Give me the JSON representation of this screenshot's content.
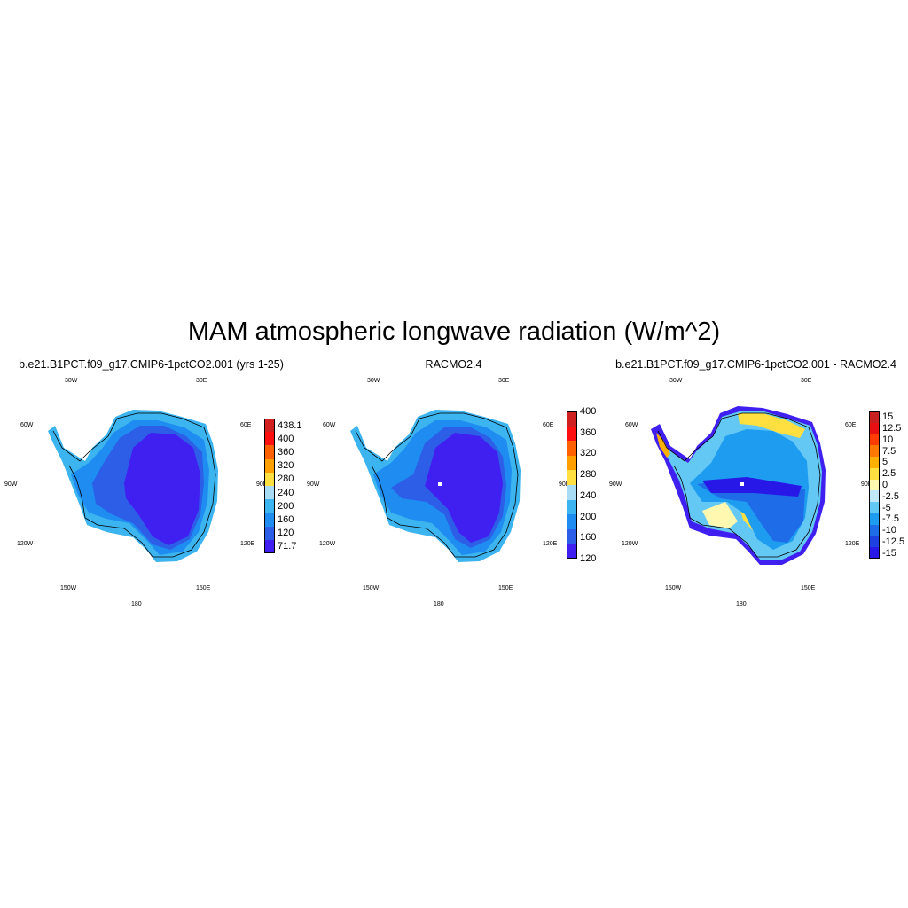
{
  "title": "MAM atmospheric longwave radiation (W/m^2)",
  "panels": [
    {
      "title": "b.e21.B1PCT.f09_g17.CMIP6-1pctCO2.001 (yrs 1-25)",
      "lon_labels": {
        "top_left": "30W",
        "top_right": "30E",
        "mid_left_upper": "60W",
        "mid_right_upper": "60E",
        "left": "90W",
        "right": "90E",
        "mid_left_lower": "120W",
        "mid_right_lower": "120E",
        "bottom_left": "150W",
        "bottom_right": "150E",
        "bottom": "180"
      },
      "colorbar": {
        "colors": [
          "#4020f0",
          "#2c5ee8",
          "#1e8cf0",
          "#3cb4f0",
          "#a8dcf4",
          "#ffe040",
          "#ffa000",
          "#ff6000",
          "#ff1010",
          "#d02020"
        ],
        "labels": [
          "71.7",
          "120",
          "160",
          "200",
          "240",
          "280",
          "320",
          "360",
          "400",
          "438.1"
        ]
      }
    },
    {
      "title": "RACMO2.4",
      "lon_labels": {
        "top_left": "30W",
        "top_right": "30E",
        "mid_left_upper": "60W",
        "mid_right_upper": "60E",
        "left": "90W",
        "right": "90E",
        "mid_left_lower": "120W",
        "mid_right_lower": "120E",
        "bottom_left": "150W",
        "bottom_right": "150E",
        "bottom": "180"
      },
      "colorbar": {
        "colors": [
          "#4020f0",
          "#2c5ee8",
          "#1e8cf0",
          "#3cb4f0",
          "#a8dcf4",
          "#ffe040",
          "#ffa000",
          "#ff6000",
          "#ff1010",
          "#d02020"
        ],
        "labels": [
          "120",
          "160",
          "200",
          "240",
          "280",
          "320",
          "360",
          "400"
        ]
      }
    },
    {
      "title": "b.e21.B1PCT.f09_g17.CMIP6-1pctCO2.001 - RACMO2.4",
      "lon_labels": {
        "top_left": "30W",
        "top_right": "30E",
        "mid_left_upper": "60W",
        "mid_right_upper": "60E",
        "left": "90W",
        "right": "90E",
        "mid_left_lower": "120W",
        "mid_right_lower": "120E",
        "bottom_left": "150W",
        "bottom_right": "150E",
        "bottom": "180"
      },
      "colorbar": {
        "colors": [
          "#2818e8",
          "#1e40e0",
          "#1e6ce8",
          "#1e9cf0",
          "#64c8f4",
          "#c0e8f8",
          "#fff8b0",
          "#ffe040",
          "#ffb000",
          "#ff7800",
          "#ff3c00",
          "#e81010",
          "#c82020"
        ],
        "labels": [
          "-15",
          "-12.5",
          "-10",
          "-7.5",
          "-5",
          "-2.5",
          "0",
          "2.5",
          "5",
          "7.5",
          "10",
          "12.5",
          "15"
        ]
      }
    }
  ]
}
